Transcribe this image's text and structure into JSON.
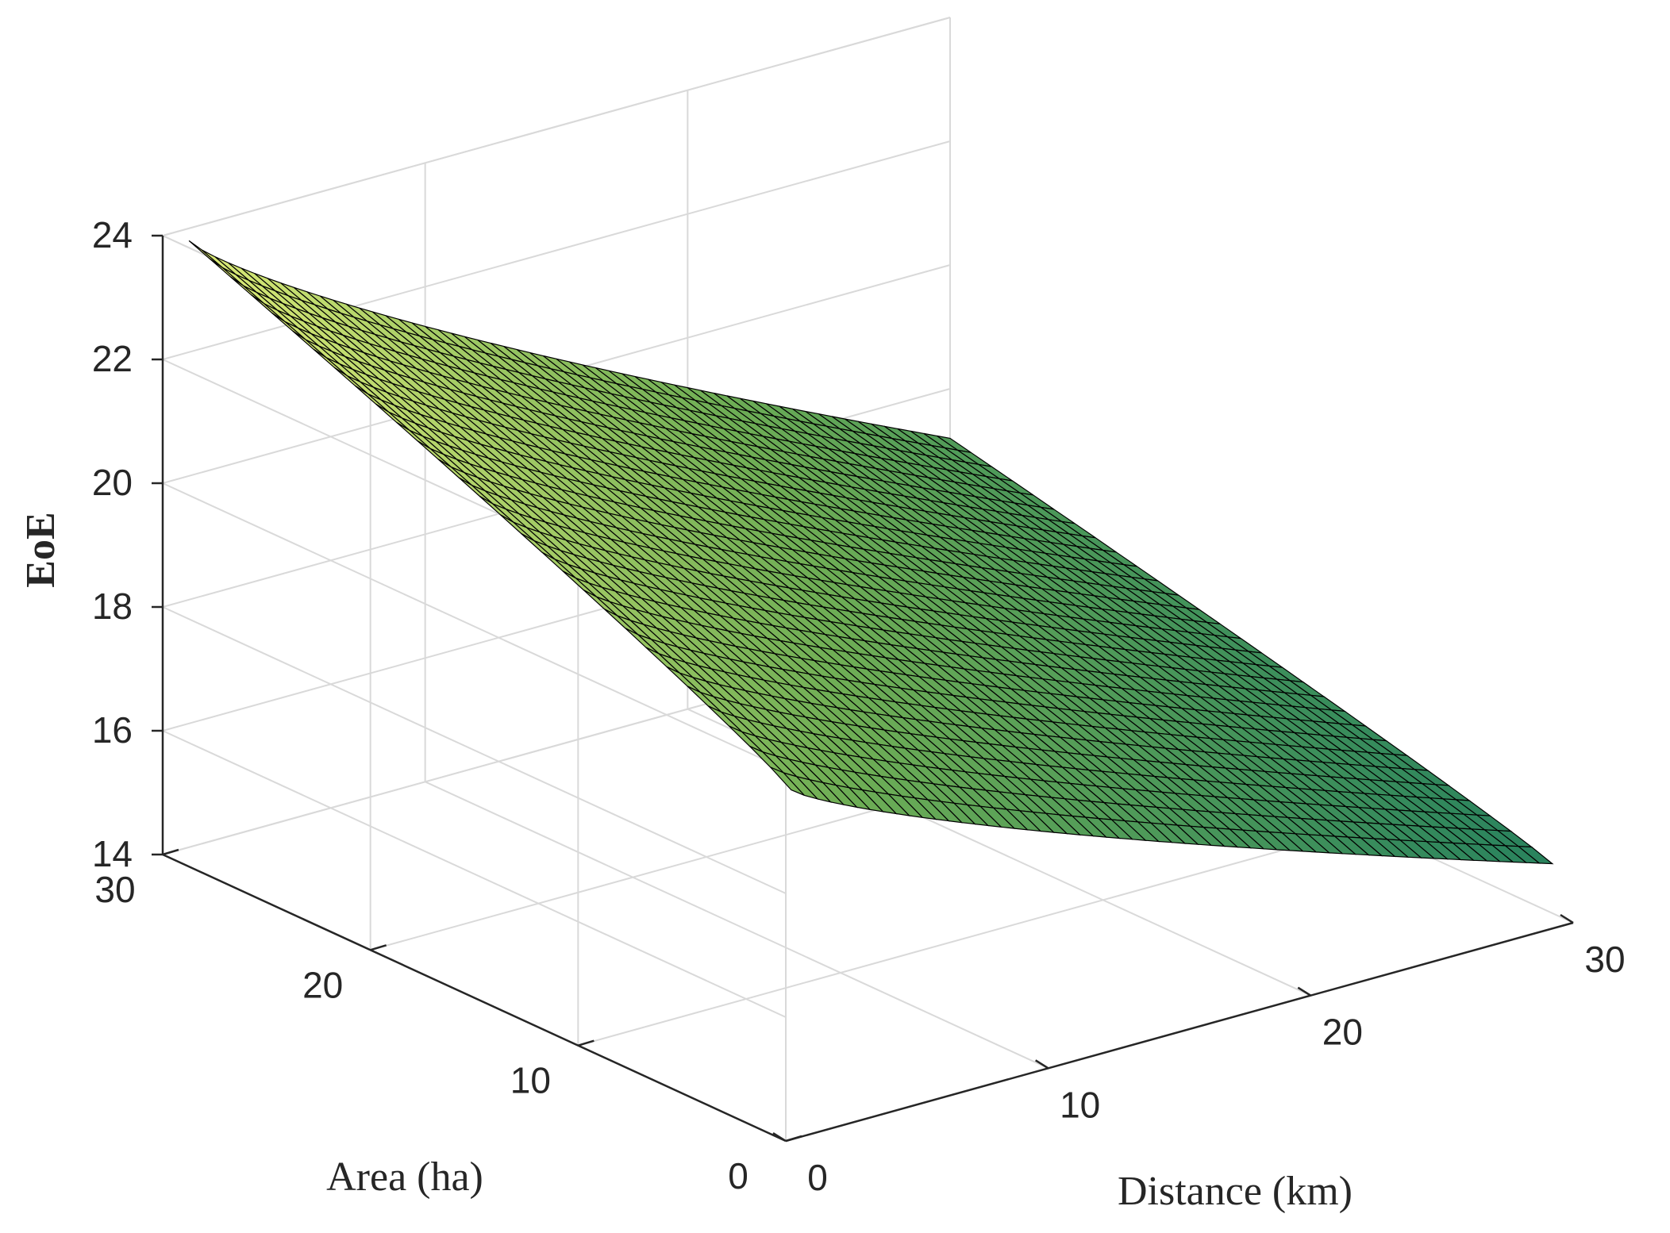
{
  "chart_data": {
    "type": "surface",
    "xlabel": "Distance (km)",
    "ylabel": "Area (ha)",
    "zlabel": "EoE",
    "xlim": [
      0,
      30
    ],
    "ylim": [
      0,
      30
    ],
    "zlim": [
      14,
      24
    ],
    "x_ticks": [
      "0",
      "10",
      "20",
      "30"
    ],
    "y_ticks": [
      "0",
      "10",
      "20",
      "30"
    ],
    "z_ticks": [
      "14",
      "16",
      "18",
      "20",
      "22",
      "24"
    ],
    "colormap": "summer",
    "colors": {
      "low": "#1b7a5f",
      "mid": "#6fae55",
      "high": "#e6f07a",
      "edge": "#000000"
    },
    "grid": true,
    "surface_domain": {
      "distance_range": [
        1,
        30
      ],
      "area_range": [
        1,
        30
      ]
    },
    "corner_values": [
      {
        "distance": 1,
        "area": 1,
        "EoE": 19.4
      },
      {
        "distance": 1,
        "area": 30,
        "EoE": 23.8
      },
      {
        "distance": 30,
        "area": 1,
        "EoE": 14.8
      },
      {
        "distance": 30,
        "area": 30,
        "EoE": 17.2
      }
    ]
  }
}
